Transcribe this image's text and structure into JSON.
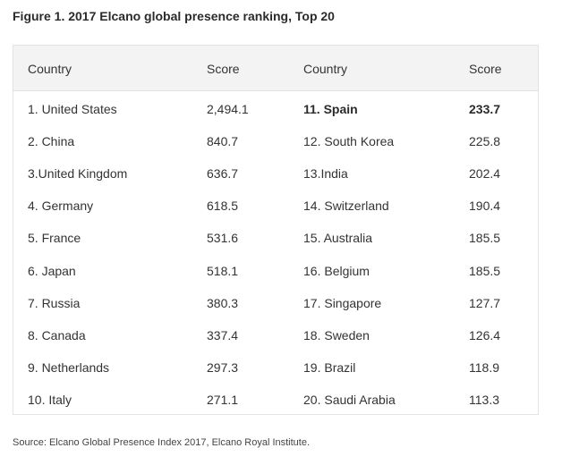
{
  "title": "Figure 1. 2017 Elcano global presence ranking, Top 20",
  "headers": [
    "Country",
    "Score",
    "Country",
    "Score"
  ],
  "rows": [
    {
      "left_country": "1. United States",
      "left_score": "2,494.1",
      "right_country": "11. Spain",
      "right_score": "233.7"
    },
    {
      "left_country": "2. China",
      "left_score": "840.7",
      "right_country": "12. South Korea",
      "right_score": "225.8"
    },
    {
      "left_country": "3.United Kingdom",
      "left_score": "636.7",
      "right_country": "13.India",
      "right_score": "202.4"
    },
    {
      "left_country": "4. Germany",
      "left_score": "618.5",
      "right_country": "14. Switzerland",
      "right_score": "190.4"
    },
    {
      "left_country": "5. France",
      "left_score": "531.6",
      "right_country": "15. Australia",
      "right_score": "185.5"
    },
    {
      "left_country": "6. Japan",
      "left_score": "518.1",
      "right_country": "16. Belgium",
      "right_score": "185.5"
    },
    {
      "left_country": "7. Russia",
      "left_score": "380.3",
      "right_country": "17. Singapore",
      "right_score": "127.7"
    },
    {
      "left_country": "8. Canada",
      "left_score": "337.4",
      "right_country": "18. Sweden",
      "right_score": "126.4"
    },
    {
      "left_country": "9. Netherlands",
      "left_score": "297.3",
      "right_country": "19. Brazil",
      "right_score": "118.9"
    },
    {
      "left_country": "10. Italy",
      "left_score": "271.1",
      "right_country": "20. Saudi Arabia",
      "right_score": "113.3"
    }
  ],
  "source": "Source: Elcano Global Presence Index 2017, Elcano Royal Institute."
}
